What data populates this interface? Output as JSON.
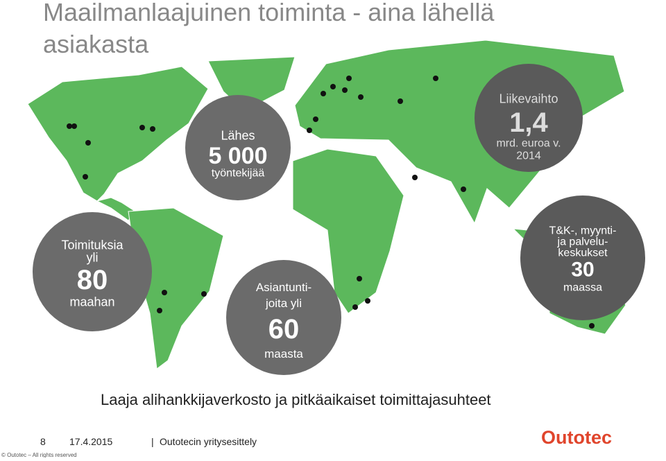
{
  "title": {
    "line1": "Maailmanlaajuinen toiminta - aina lähellä",
    "line2": "asiakasta"
  },
  "circles": [
    {
      "lines": [
        "Lähes",
        "5 000",
        "työntekijää"
      ]
    },
    {
      "lines": [
        "Liikevaihto",
        "1,4",
        "mrd. euroa v.",
        "2014"
      ]
    },
    {
      "lines": [
        "Toimituksia",
        "yli",
        "80",
        "maahan"
      ]
    },
    {
      "lines": [
        "Asiantunti-",
        "joita yli",
        "60",
        "maasta"
      ]
    },
    {
      "lines": [
        "T&K-, myynti-",
        "ja palvelu-",
        "keskukset",
        "30",
        "maassa"
      ]
    }
  ],
  "subtitle": "Laaja alihankkijaverkosto ja pitkäaikaiset toimittajasuhteet",
  "footer": {
    "page": "8",
    "date": "17.4.2015",
    "separator": "|",
    "presentation": "Outotecin yritysesittely",
    "copyright": "© Outotec – All rights reserved",
    "logo": "Outotec"
  }
}
